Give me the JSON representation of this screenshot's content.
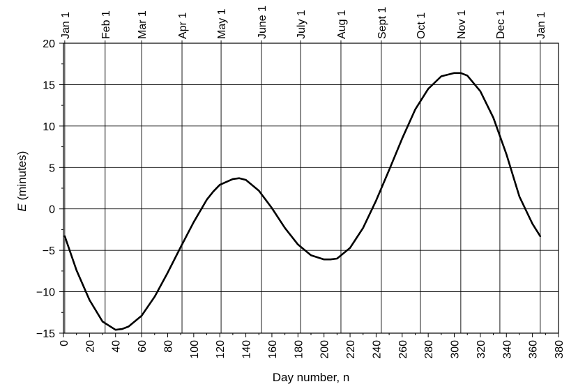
{
  "chart_data": {
    "type": "line",
    "title": "",
    "xlabel": "Day number, n",
    "ylabel_italic": "E",
    "ylabel_rest": " (minutes)",
    "xlim": [
      0,
      380
    ],
    "ylim": [
      -15,
      20
    ],
    "x_ticks": [
      0,
      20,
      40,
      60,
      80,
      100,
      120,
      140,
      160,
      180,
      200,
      220,
      240,
      260,
      280,
      300,
      320,
      340,
      360,
      380
    ],
    "y_ticks": [
      -15,
      -10,
      -5,
      0,
      5,
      10,
      15,
      20
    ],
    "y_tick_labels": [
      "−15",
      "−10",
      "−5",
      "0",
      "5",
      "10",
      "15",
      "20"
    ],
    "grid": true,
    "top_axis": {
      "labels": [
        "Jan 1",
        "Feb 1",
        "Mar 1",
        "Apr 1",
        "May 1",
        "June 1",
        "July 1",
        "Aug 1",
        "Sept 1",
        "Oct 1",
        "Nov 1",
        "Dec 1",
        "Jan 1"
      ],
      "days": [
        1,
        32,
        60,
        91,
        121,
        152,
        182,
        213,
        244,
        274,
        305,
        335,
        366
      ]
    },
    "series": [
      {
        "x": [
          1,
          10,
          20,
          30,
          40,
          45,
          50,
          60,
          70,
          80,
          90,
          100,
          110,
          115,
          120,
          130,
          135,
          140,
          150,
          160,
          170,
          180,
          190,
          200,
          205,
          210,
          220,
          230,
          240,
          250,
          260,
          270,
          280,
          290,
          300,
          305,
          310,
          320,
          330,
          340,
          350,
          360,
          366
        ],
        "y": [
          -3.3,
          -7.4,
          -11.0,
          -13.6,
          -14.6,
          -14.5,
          -14.2,
          -12.9,
          -10.6,
          -7.7,
          -4.6,
          -1.6,
          1.1,
          2.1,
          2.9,
          3.6,
          3.7,
          3.5,
          2.2,
          0.1,
          -2.3,
          -4.3,
          -5.6,
          -6.1,
          -6.1,
          -6.0,
          -4.7,
          -2.3,
          1.0,
          4.7,
          8.5,
          12.0,
          14.5,
          16.0,
          16.4,
          16.4,
          16.1,
          14.2,
          11.0,
          6.6,
          1.5,
          -1.8,
          -3.3
        ]
      }
    ]
  }
}
